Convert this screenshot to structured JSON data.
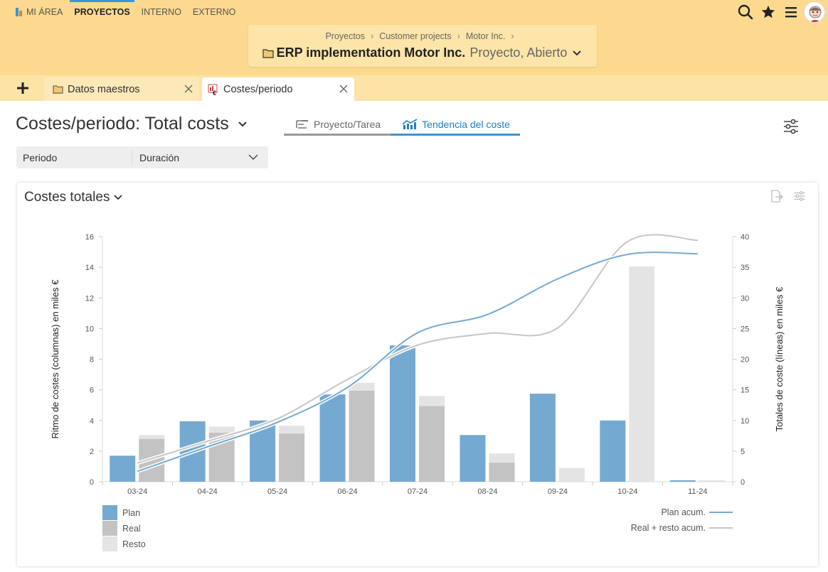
{
  "topnav": {
    "items": [
      {
        "label": "MI ÁREA",
        "active": false
      },
      {
        "label": "PROYECTOS",
        "active": true
      },
      {
        "label": "INTERNO",
        "active": false
      },
      {
        "label": "EXTERNO",
        "active": false
      }
    ],
    "icons": [
      "search-icon",
      "star-icon",
      "menu-icon",
      "avatar"
    ]
  },
  "breadcrumb": {
    "items": [
      "Proyectos",
      "Customer projects",
      "Motor Inc."
    ],
    "separator": "›",
    "project_name": "ERP implementation Motor Inc.",
    "project_state": "Proyecto, Abierto"
  },
  "tabs": {
    "items": [
      {
        "label": "Datos maestros",
        "icon": "folder-icon"
      },
      {
        "label": "Costes/periodo",
        "icon": "cost-icon",
        "active": true
      }
    ]
  },
  "page": {
    "title": "Costes/periodo: Total costs",
    "view_tabs": [
      {
        "label": "Proyecto/Tarea",
        "active": false
      },
      {
        "label": "Tendencia del coste",
        "active": true
      }
    ],
    "filter_label": "Periodo",
    "filter_value": "Duración"
  },
  "card": {
    "title": "Costes totales"
  },
  "colors": {
    "plan": "#74aad1",
    "real": "#c3c3c3",
    "resto": "#e4e4e4",
    "plan_line": "#74aad1",
    "real_line": "#c6c6c6",
    "accent": "#3a95d6",
    "topbar": "#fcd98f"
  },
  "chart_data": {
    "type": "bar",
    "categories": [
      "03-24",
      "04-24",
      "05-24",
      "06-24",
      "07-24",
      "08-24",
      "09-24",
      "10-24",
      "11-24"
    ],
    "series": [
      {
        "name": "Plan",
        "values": [
          1.7,
          3.95,
          4.0,
          5.7,
          8.9,
          3.05,
          5.75,
          4.0,
          0.1
        ]
      },
      {
        "name": "Real",
        "values": [
          2.8,
          3.2,
          3.15,
          5.95,
          4.95,
          1.25,
          0,
          0,
          0
        ]
      },
      {
        "name": "Resto",
        "values": [
          0.25,
          0.4,
          0.5,
          0.5,
          0.65,
          0.6,
          0.9,
          14.05,
          0.1
        ]
      }
    ],
    "lines": [
      {
        "name": "Plan acum.",
        "values": [
          1.7,
          5.7,
          9.7,
          15.4,
          24.3,
          27.3,
          33.1,
          37.1,
          37.2
        ]
      },
      {
        "name": "Real + resto acum.",
        "values": [
          3.05,
          6.6,
          10.3,
          16.7,
          22.3,
          24.2,
          25.1,
          39.2,
          39.4
        ]
      }
    ],
    "ylabel": "Ritmo de costes (columnas) en miles €",
    "y2label": "Totales de coste (líneas) en miles €",
    "ylim": [
      0,
      16
    ],
    "y2lim": [
      0,
      40
    ],
    "yticks": [
      "0",
      "2",
      "4",
      "6",
      "8",
      "10",
      "12",
      "14",
      "16"
    ],
    "y2ticks": [
      "0",
      "5",
      "10",
      "15",
      "20",
      "25",
      "30",
      "35",
      "40"
    ],
    "legend_left": [
      "Plan",
      "Real",
      "Resto"
    ],
    "legend_right": [
      "Plan acum.",
      "Real + resto acum."
    ],
    "grid": false
  }
}
